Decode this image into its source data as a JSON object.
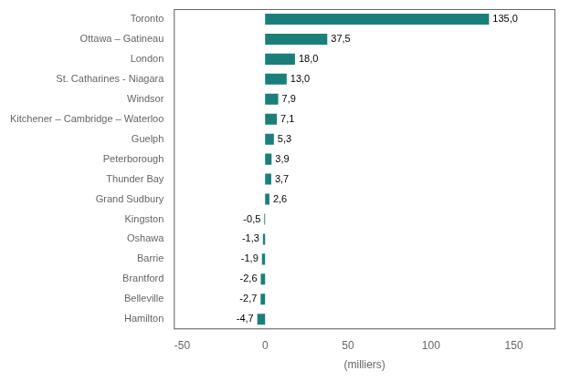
{
  "chart_data": {
    "type": "bar",
    "orientation": "horizontal",
    "categories": [
      "Hamilton",
      "Belleville",
      "Brantford",
      "Barrie",
      "Oshawa",
      "Kingston",
      "Grand Sudbury",
      "Thunder Bay",
      "Peterborough",
      "Guelph",
      "Kitchener – Cambridge – Waterloo",
      "Windsor",
      "St. Catharines - Niagara",
      "London",
      "Ottawa – Gatineau",
      "Toronto"
    ],
    "values": [
      -4.7,
      -2.7,
      -2.6,
      -1.9,
      -1.3,
      -0.5,
      2.6,
      3.7,
      3.9,
      5.3,
      7.1,
      7.9,
      13.0,
      18.0,
      37.5,
      135.0
    ],
    "value_labels": [
      "-4,7",
      "-2,7",
      "-2,6",
      "-1,9",
      "-1,3",
      "-0,5",
      "2,6",
      "3,7",
      "3,9",
      "5,3",
      "7,1",
      "7,9",
      "13,0",
      "18,0",
      "37,5",
      "135,0"
    ],
    "data_labels": true,
    "color": "#1a7f7a",
    "xlabel": "(milliers)",
    "xlim": [
      -55,
      175
    ],
    "xticks": [
      -50,
      0,
      50,
      100,
      150
    ],
    "grid": false
  }
}
